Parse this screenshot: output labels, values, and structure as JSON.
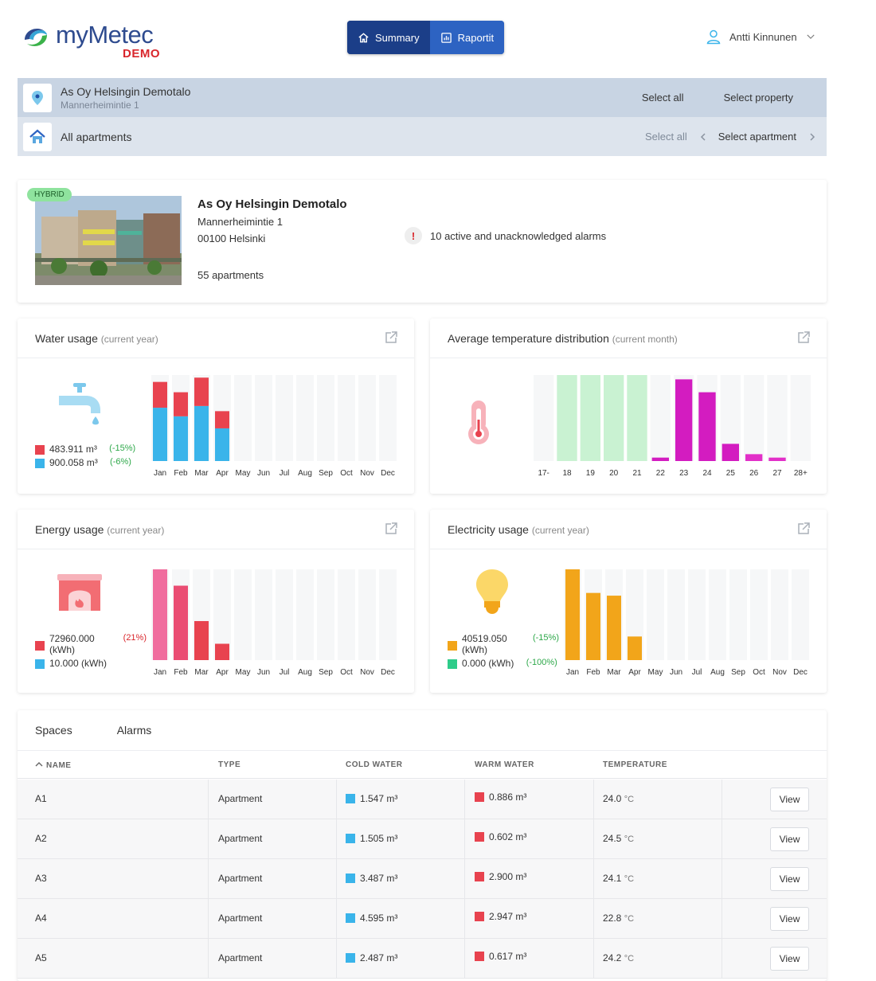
{
  "header": {
    "logo_text": "myMetec",
    "logo_tag": "DEMO",
    "nav": [
      {
        "label": "Summary",
        "icon": "home-icon"
      },
      {
        "label": "Raportit",
        "icon": "report-icon"
      }
    ],
    "user_name": "Antti Kinnunen"
  },
  "property_selector": {
    "title": "As Oy Helsingin Demotalo",
    "subtitle": "Mannerheimintie 1",
    "select_all": "Select all",
    "select_label": "Select property"
  },
  "apartment_selector": {
    "title": "All apartments",
    "select_all": "Select all",
    "select_label": "Select apartment"
  },
  "property_card": {
    "badge": "HYBRID",
    "name": "As Oy Helsingin Demotalo",
    "street": "Mannerheimintie 1",
    "city": "00100 Helsinki",
    "apartments": "55 apartments",
    "alarm_text": "10 active and unacknowledged alarms",
    "alarm_symbol": "!"
  },
  "water": {
    "title": "Water usage",
    "period": "(current year)",
    "warm_value": "483.911 m³",
    "warm_change": "(-15%)",
    "cold_value": "900.058 m³",
    "cold_change": "(-6%)",
    "colors": {
      "warm": "#e8434f",
      "cold": "#3ab4ea"
    }
  },
  "temperature": {
    "title": "Average temperature distribution",
    "period": "(current month)"
  },
  "energy": {
    "title": "Energy usage",
    "period": "(current year)",
    "heat_value": "72960.000",
    "heat_unit": "(kWh)",
    "heat_change": "(21%)",
    "cool_value": "10.000 (kWh)",
    "colors": {
      "heat": "#e8434f",
      "cool": "#3ab4ea"
    }
  },
  "electricity": {
    "title": "Electricity usage",
    "period": "(current year)",
    "main_value": "40519.050",
    "main_unit": "(kWh)",
    "main_change": "(-15%)",
    "second_value": "0.000 (kWh)",
    "second_change": "(-100%)",
    "colors": {
      "main": "#f2a51a",
      "second": "#2ecc8a"
    }
  },
  "chart_data": [
    {
      "type": "bar",
      "stacked": true,
      "categories": [
        "Jan",
        "Feb",
        "Mar",
        "Apr",
        "May",
        "Jun",
        "Jul",
        "Aug",
        "Sep",
        "Oct",
        "Nov",
        "Dec"
      ],
      "series": [
        {
          "values": [
            0.62,
            0.52,
            0.64,
            0.38,
            0,
            0,
            0,
            0,
            0,
            0,
            0,
            0
          ],
          "color": "#3ab4ea"
        },
        {
          "values": [
            0.3,
            0.28,
            0.33,
            0.2,
            0,
            0,
            0,
            0,
            0,
            0,
            0,
            0
          ],
          "color": "#e8434f"
        }
      ],
      "ylim": [
        0,
        1
      ]
    },
    {
      "type": "bar",
      "categories": [
        "17-",
        "18",
        "19",
        "20",
        "21",
        "22",
        "23",
        "24",
        "25",
        "26",
        "27",
        "28+"
      ],
      "values": [
        0,
        1,
        1,
        1,
        1,
        0.04,
        0.95,
        0.8,
        0.2,
        0.08,
        0.04,
        0
      ],
      "colors": [
        "#c9f2d2",
        "#c9f2d2",
        "#c9f2d2",
        "#c9f2d2",
        "#c9f2d2",
        "#d31cc0",
        "#d31cc0",
        "#d31cc0",
        "#d31cc0",
        "#e230c8",
        "#e230c8",
        "#e230c8"
      ],
      "ylim": [
        0,
        1
      ]
    },
    {
      "type": "bar",
      "categories": [
        "Jan",
        "Feb",
        "Mar",
        "Apr",
        "May",
        "Jun",
        "Jul",
        "Aug",
        "Sep",
        "Oct",
        "Nov",
        "Dec"
      ],
      "values": [
        1.0,
        0.82,
        0.43,
        0.18,
        0,
        0,
        0,
        0,
        0,
        0,
        0,
        0
      ],
      "colors": [
        "#f06d9e",
        "#ea4d73",
        "#e8434f",
        "#e8434f"
      ],
      "ylim": [
        0,
        1
      ]
    },
    {
      "type": "bar",
      "categories": [
        "Jan",
        "Feb",
        "Mar",
        "Apr",
        "May",
        "Jun",
        "Jul",
        "Aug",
        "Sep",
        "Oct",
        "Nov",
        "Dec"
      ],
      "values": [
        1.0,
        0.74,
        0.71,
        0.26,
        0,
        0,
        0,
        0,
        0,
        0,
        0,
        0
      ],
      "colors": [
        "#f2a51a"
      ],
      "ylim": [
        0,
        1
      ]
    }
  ],
  "table": {
    "tabs": [
      "Spaces",
      "Alarms"
    ],
    "columns": [
      "NAME",
      "TYPE",
      "COLD WATER",
      "WARM WATER",
      "TEMPERATURE"
    ],
    "view_label": "View",
    "temp_unit": "°C",
    "rows": [
      {
        "name": "A1",
        "type": "Apartment",
        "cold": "1.547 m³",
        "warm": "0.886 m³",
        "temp": "24.0"
      },
      {
        "name": "A2",
        "type": "Apartment",
        "cold": "1.505 m³",
        "warm": "0.602 m³",
        "temp": "24.5"
      },
      {
        "name": "A3",
        "type": "Apartment",
        "cold": "3.487 m³",
        "warm": "2.900 m³",
        "temp": "24.1"
      },
      {
        "name": "A4",
        "type": "Apartment",
        "cold": "4.595 m³",
        "warm": "2.947 m³",
        "temp": "22.8"
      },
      {
        "name": "A5",
        "type": "Apartment",
        "cold": "2.487 m³",
        "warm": "0.617 m³",
        "temp": "24.2"
      }
    ]
  }
}
